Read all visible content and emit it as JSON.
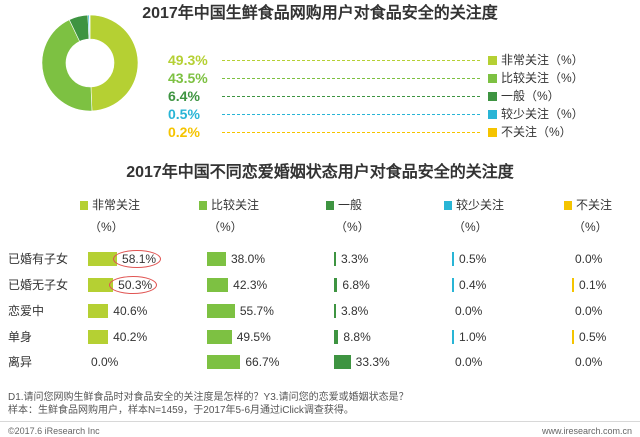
{
  "chart_data": [
    {
      "type": "pie",
      "donut": true,
      "title": "2017年中国生鲜食品网购用户对食品安全的关注度",
      "categories": [
        "非常关注（%）",
        "比较关注（%）",
        "一般（%）",
        "较少关注（%）",
        "不关注（%）"
      ],
      "values": [
        49.3,
        43.5,
        6.4,
        0.5,
        0.2
      ],
      "labels": [
        "49.3%",
        "43.5%",
        "6.4%",
        "0.5%",
        "0.2%"
      ],
      "colors": [
        "#b5d033",
        "#7dc142",
        "#3e9441",
        "#29b5d6",
        "#f5c400"
      ],
      "legend": "right"
    },
    {
      "type": "bar",
      "orientation": "horizontal",
      "title": "2017年中国不同恋爱婚姻状态用户对食品安全的关注度",
      "categories": [
        "已婚有子女",
        "已婚无子女",
        "恋爱中",
        "单身",
        "离异"
      ],
      "series": [
        {
          "name": "非常关注",
          "unit": "（%）",
          "color": "#b5d033",
          "values": [
            58.1,
            50.3,
            40.6,
            40.2,
            0.0
          ],
          "labels": [
            "58.1%",
            "50.3%",
            "40.6%",
            "40.2%",
            "0.0%"
          ]
        },
        {
          "name": "比较关注",
          "unit": "（%）",
          "color": "#7dc142",
          "values": [
            38.0,
            42.3,
            55.7,
            49.5,
            66.7
          ],
          "labels": [
            "38.0%",
            "42.3%",
            "55.7%",
            "49.5%",
            "66.7%"
          ]
        },
        {
          "name": "一般",
          "unit": "（%）",
          "color": "#3e9441",
          "values": [
            3.3,
            6.8,
            3.8,
            8.8,
            33.3
          ],
          "labels": [
            "3.3%",
            "6.8%",
            "3.8%",
            "8.8%",
            "33.3%"
          ]
        },
        {
          "name": "较少关注",
          "unit": "（%）",
          "color": "#29b5d6",
          "values": [
            0.5,
            0.4,
            0.0,
            1.0,
            0.0
          ],
          "labels": [
            "0.5%",
            "0.4%",
            "0.0%",
            "1.0%",
            "0.0%"
          ]
        },
        {
          "name": "不关注",
          "unit": "（%）",
          "color": "#f5c400",
          "values": [
            0.0,
            0.1,
            0.0,
            0.5,
            0.0
          ],
          "labels": [
            "0.0%",
            "0.1%",
            "0.0%",
            "0.5%",
            "0.0%"
          ]
        }
      ],
      "highlights": [
        {
          "series": 0,
          "category": 0
        },
        {
          "series": 0,
          "category": 1
        }
      ],
      "highlight_color": "#e05553",
      "legend": "top"
    }
  ],
  "footnote": {
    "question": "D1.请问您网购生鲜食品时对食品安全的关注度是怎样的？Y3.请问您的恋爱或婚姻状态是？",
    "sample": "样本：生鲜食品网购用户，样本N=1459，于2017年5-6月通过iClick调查获得。"
  },
  "footer": {
    "copyright": "©2017.6 iResearch Inc",
    "website": "www.iresearch.com.cn"
  }
}
